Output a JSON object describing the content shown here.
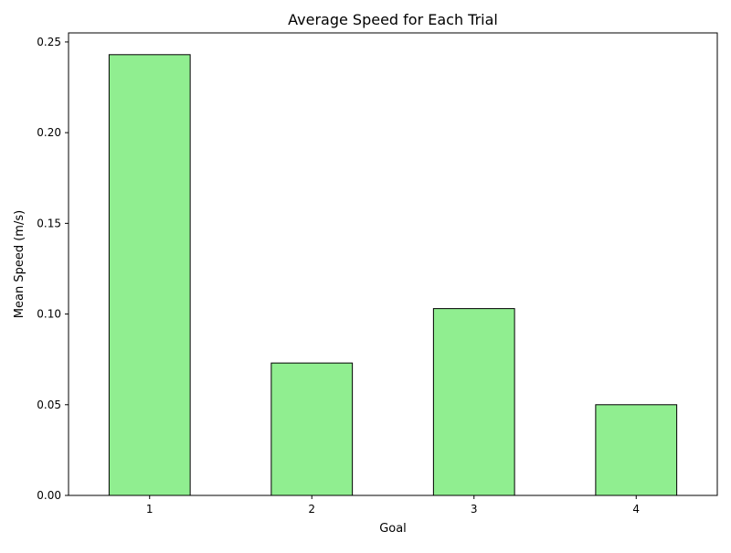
{
  "chart_data": {
    "type": "bar",
    "title": "Average Speed for Each Trial",
    "xlabel": "Goal",
    "ylabel": "Mean Speed (m/s)",
    "categories": [
      "1",
      "2",
      "3",
      "4"
    ],
    "values": [
      0.243,
      0.073,
      0.103,
      0.05
    ],
    "ylim": [
      0,
      0.255
    ],
    "yticks": [
      "0.00",
      "0.05",
      "0.10",
      "0.15",
      "0.20",
      "0.25"
    ],
    "grid": false,
    "legend": "none",
    "colors": {
      "bar_fill": "#90ee90",
      "bar_edge": "#000000"
    }
  }
}
